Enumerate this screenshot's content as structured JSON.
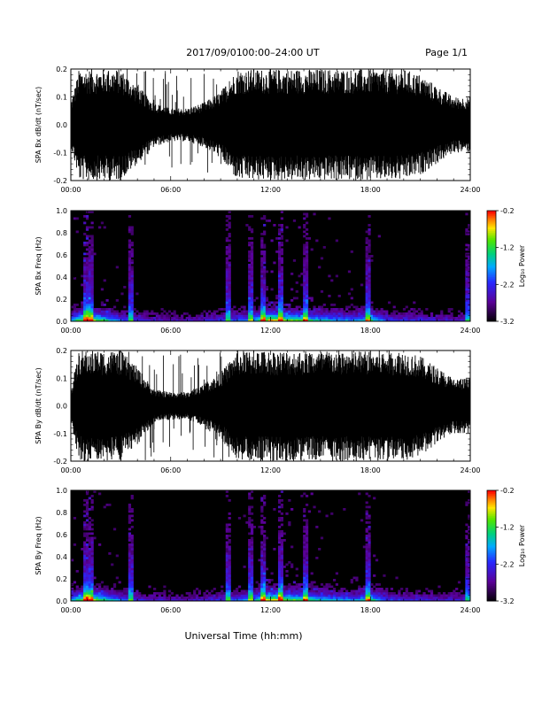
{
  "header": {
    "date": "2017/09/01",
    "range": "00:00–24:00 UT",
    "page": "Page 1/1"
  },
  "footer": {
    "xlabel": "Universal Time (hh:mm)"
  },
  "chart_data": [
    {
      "type": "line",
      "ylabel": "SPA Bx dB/dt (nT/sec)",
      "ylim": [
        -0.2,
        0.2
      ],
      "yticks": [
        "-0.2",
        "-0.1",
        "0.0",
        "0.1",
        "0.2"
      ],
      "xticks": [
        "00:00",
        "06:00",
        "12:00",
        "18:00",
        "24:00"
      ],
      "xlim_hours": [
        0,
        24
      ],
      "series": [
        {
          "envelope_hours": [
            0,
            0.5,
            1,
            1.5,
            2,
            3,
            4,
            5,
            6,
            7,
            8,
            9,
            10,
            11,
            12,
            13,
            14,
            15,
            16,
            17,
            18,
            19,
            20,
            21,
            22,
            23,
            24
          ],
          "envelope_amplitude": [
            0.08,
            0.2,
            0.2,
            0.2,
            0.2,
            0.2,
            0.14,
            0.08,
            0.06,
            0.06,
            0.08,
            0.12,
            0.2,
            0.2,
            0.2,
            0.2,
            0.2,
            0.2,
            0.2,
            0.2,
            0.2,
            0.2,
            0.2,
            0.18,
            0.14,
            0.1,
            0.1
          ]
        }
      ]
    },
    {
      "type": "heatmap",
      "ylabel": "SPA Bx Freq (Hz)",
      "ylim": [
        0,
        1.0
      ],
      "yticks": [
        "0.0",
        "0.2",
        "0.4",
        "0.6",
        "0.8",
        "1.0"
      ],
      "xticks": [
        "00:00",
        "06:00",
        "12:00",
        "18:00",
        "24:00"
      ],
      "colorbar": {
        "label": "Log₁₀ Power",
        "ticks": [
          "-0.2",
          "-1.2",
          "-2.2",
          "-3.2"
        ],
        "range": [
          -3.2,
          -0.2
        ]
      },
      "activity_hours": [
        0,
        1,
        2,
        3,
        4,
        5,
        6,
        7,
        8,
        9,
        10,
        11,
        12,
        13,
        14,
        15,
        16,
        17,
        18,
        19,
        20,
        21,
        22,
        23,
        24
      ],
      "activity_level": [
        0.55,
        0.9,
        0.7,
        0.45,
        0.35,
        0.3,
        0.25,
        0.25,
        0.3,
        0.35,
        0.45,
        0.55,
        0.95,
        0.8,
        0.75,
        0.6,
        0.55,
        0.5,
        0.7,
        0.4,
        0.35,
        0.35,
        0.3,
        0.3,
        0.3
      ],
      "spike_hours": [
        0.9,
        1.2,
        3.6,
        9.5,
        10.8,
        11.6,
        12.6,
        14.1,
        17.9,
        23.8
      ]
    },
    {
      "type": "line",
      "ylabel": "SPA By dB/dt (nT/sec)",
      "ylim": [
        -0.2,
        0.2
      ],
      "yticks": [
        "-0.2",
        "-0.1",
        "0.0",
        "0.1",
        "0.2"
      ],
      "xticks": [
        "00:00",
        "06:00",
        "12:00",
        "18:00",
        "24:00"
      ],
      "xlim_hours": [
        0,
        24
      ],
      "series": [
        {
          "envelope_hours": [
            0,
            0.5,
            1,
            1.5,
            2,
            3,
            4,
            5,
            6,
            7,
            8,
            9,
            10,
            11,
            12,
            13,
            14,
            15,
            16,
            17,
            18,
            19,
            20,
            21,
            22,
            23,
            24
          ],
          "envelope_amplitude": [
            0.06,
            0.2,
            0.2,
            0.2,
            0.2,
            0.2,
            0.14,
            0.06,
            0.05,
            0.05,
            0.08,
            0.12,
            0.2,
            0.2,
            0.2,
            0.2,
            0.2,
            0.2,
            0.2,
            0.2,
            0.2,
            0.2,
            0.2,
            0.18,
            0.14,
            0.1,
            0.1
          ]
        }
      ]
    },
    {
      "type": "heatmap",
      "ylabel": "SPA By Freq (Hz)",
      "ylim": [
        0,
        1.0
      ],
      "yticks": [
        "0.0",
        "0.2",
        "0.4",
        "0.6",
        "0.8",
        "1.0"
      ],
      "xticks": [
        "00:00",
        "06:00",
        "12:00",
        "18:00",
        "24:00"
      ],
      "colorbar": {
        "label": "Log₁₀ Power",
        "ticks": [
          "-0.2",
          "-1.2",
          "-2.2",
          "-3.2"
        ],
        "range": [
          -3.2,
          -0.2
        ]
      },
      "activity_hours": [
        0,
        1,
        2,
        3,
        4,
        5,
        6,
        7,
        8,
        9,
        10,
        11,
        12,
        13,
        14,
        15,
        16,
        17,
        18,
        19,
        20,
        21,
        22,
        23,
        24
      ],
      "activity_level": [
        0.55,
        0.9,
        0.7,
        0.45,
        0.35,
        0.3,
        0.25,
        0.25,
        0.3,
        0.35,
        0.45,
        0.55,
        0.95,
        0.8,
        0.75,
        0.6,
        0.55,
        0.5,
        0.7,
        0.4,
        0.35,
        0.35,
        0.3,
        0.3,
        0.3
      ],
      "spike_hours": [
        0.9,
        1.2,
        3.6,
        9.5,
        10.8,
        11.6,
        12.6,
        14.1,
        17.9,
        23.8
      ]
    }
  ]
}
